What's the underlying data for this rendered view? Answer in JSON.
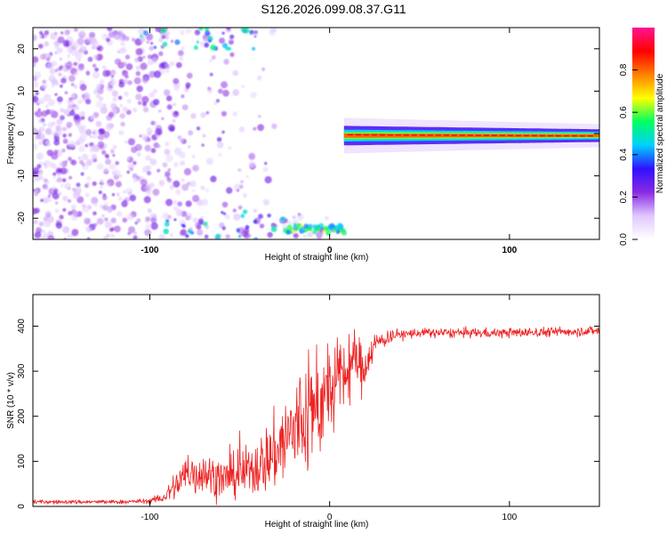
{
  "figure_title": "S126.2026.099.08.37.G11",
  "chart_data": [
    {
      "type": "heatmap",
      "title": "S126.2026.099.08.37.G11",
      "xlabel": "Height of straight line (km)",
      "ylabel": "Frequency (Hz)",
      "xlim": [
        -165,
        150
      ],
      "ylim": [
        -25,
        25
      ],
      "x_ticks": [
        -100,
        0,
        100
      ],
      "x_tick_labels": [
        "-100",
        "0",
        "100"
      ],
      "y_ticks": [
        -20,
        -10,
        0,
        10,
        20
      ],
      "y_tick_labels": [
        "-20",
        "-10",
        "0",
        "10",
        "20"
      ],
      "colorbar": {
        "label": "Normalized spectral amplitude",
        "range": [
          0,
          1
        ],
        "ticks": [
          0.0,
          0.2,
          0.4,
          0.6,
          0.8
        ],
        "tick_labels": [
          "0.0",
          "0.2",
          "0.4",
          "0.6",
          "0.8"
        ],
        "colors": [
          "#ffffff",
          "#e0c8ff",
          "#8a2be2",
          "#3010ff",
          "#00d0ff",
          "#00ff60",
          "#ffff00",
          "#ff8000",
          "#ff0000",
          "#ff1493"
        ]
      },
      "regions": [
        {
          "name": "noise-above",
          "x_range": [
            -165,
            2
          ],
          "freq_range": [
            -25,
            25
          ],
          "amplitude": 0.15
        },
        {
          "name": "ground-echo",
          "x_range": [
            -25,
            8
          ],
          "freq_range": [
            -25,
            -21
          ],
          "amplitude": 0.55
        },
        {
          "name": "signal-band",
          "x_range": [
            8,
            150
          ],
          "freq_center": 0,
          "peak_amplitude": 0.95
        }
      ]
    },
    {
      "type": "line",
      "xlabel": "Height of straight line (km)",
      "ylabel": "SNR (10 * v/v)",
      "xlim": [
        -165,
        150
      ],
      "ylim": [
        0,
        470
      ],
      "x_ticks": [
        -100,
        0,
        100
      ],
      "x_tick_labels": [
        "-100",
        "0",
        "100"
      ],
      "y_ticks": [
        0,
        100,
        200,
        300,
        400
      ],
      "y_tick_labels": [
        "0",
        "100",
        "200",
        "300",
        "400"
      ],
      "color": "#ee2222",
      "series": [
        {
          "name": "SNR",
          "x": [
            -165,
            -140,
            -115,
            -100,
            -92,
            -86,
            -80,
            -70,
            -60,
            -50,
            -40,
            -30,
            -20,
            -12,
            -5,
            0,
            5,
            10,
            15,
            18,
            25,
            35,
            50,
            70,
            100,
            130,
            150
          ],
          "y": [
            10,
            10,
            10,
            12,
            20,
            45,
            70,
            75,
            60,
            70,
            90,
            120,
            170,
            200,
            230,
            250,
            280,
            300,
            330,
            300,
            360,
            380,
            385,
            385,
            385,
            388,
            390
          ],
          "noise_amplitude": [
            4,
            4,
            4,
            5,
            12,
            30,
            45,
            45,
            40,
            45,
            60,
            80,
            110,
            120,
            110,
            90,
            80,
            70,
            60,
            50,
            25,
            12,
            10,
            10,
            10,
            10,
            10
          ]
        }
      ]
    }
  ]
}
